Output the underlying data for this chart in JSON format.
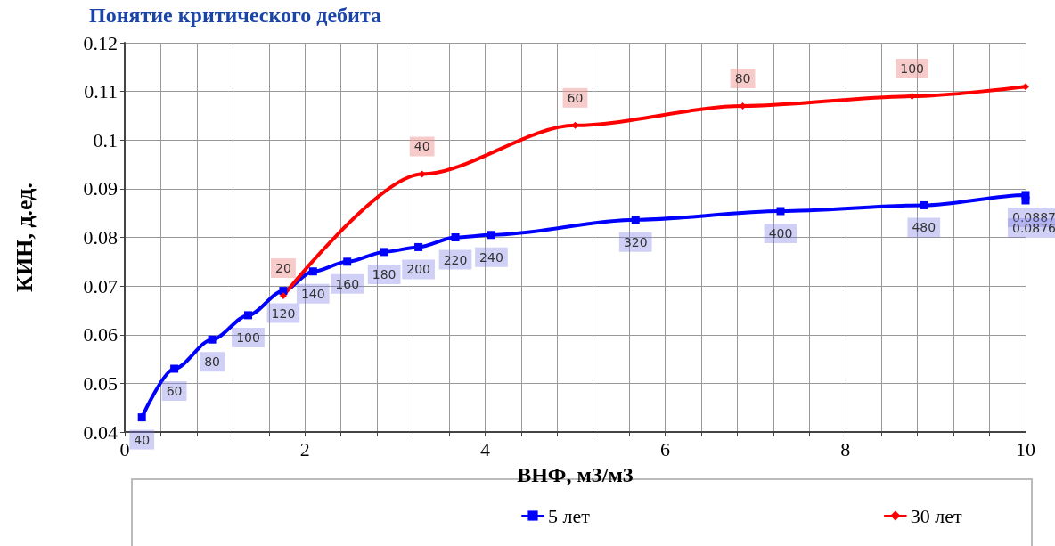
{
  "chart_data": {
    "type": "line",
    "title": "Понятие критического дебита",
    "xlabel": "ВНФ, м3/м3",
    "ylabel": "КИН, д.ед.",
    "xlim": [
      0,
      10
    ],
    "xticks": [
      0,
      {
        "value": 0.4,
        "label": null
      },
      {
        "value": 0.8,
        "label": null
      },
      {
        "value": 1.2,
        "label": null
      },
      {
        "value": 1.6,
        "label": null
      },
      2,
      {
        "value": 2.4,
        "label": null
      },
      {
        "value": 2.8,
        "label": null
      },
      {
        "value": 3.2,
        "label": null
      },
      {
        "value": 3.6,
        "label": null
      },
      4,
      {
        "value": 4.4,
        "label": null
      },
      {
        "value": 4.8,
        "label": null
      },
      {
        "value": 5.2,
        "label": null
      },
      {
        "value": 5.6,
        "label": null
      },
      6,
      {
        "value": 6.4,
        "label": null
      },
      {
        "value": 6.8,
        "label": null
      },
      {
        "value": 7.2,
        "label": null
      },
      {
        "value": 7.6,
        "label": null
      },
      8,
      {
        "value": 8.4,
        "label": null
      },
      {
        "value": 8.8,
        "label": null
      },
      {
        "value": 9.2,
        "label": null
      },
      {
        "value": 9.6,
        "label": null
      },
      10
    ],
    "ylim": [
      0.04,
      0.12
    ],
    "yticks": [
      0.04,
      0.05,
      0.06,
      0.07,
      0.08,
      0.09,
      0.1,
      0.11,
      0.12
    ],
    "grid": true,
    "legend": "bottom",
    "line_style": "solid",
    "series": [
      {
        "name": "5 лет",
        "color": "#0000ff",
        "marker": "square",
        "x": [
          0.19,
          0.55,
          0.97,
          1.37,
          1.76,
          2.09,
          2.47,
          2.88,
          3.26,
          3.67,
          4.07,
          5.67,
          7.28,
          8.87,
          10,
          10
        ],
        "values": [
          0.043,
          0.053,
          0.059,
          0.064,
          0.069,
          0.073,
          0.075,
          0.077,
          0.078,
          0.08,
          0.0805,
          0.0836,
          0.0854,
          0.0866,
          0.0887,
          0.0876
        ]
      },
      {
        "name": "30 лет",
        "color": "#ff0000",
        "marker": "diamond",
        "x": [
          1.76,
          3.3,
          5.0,
          6.86,
          8.74,
          10
        ],
        "values": [
          0.068,
          0.093,
          0.103,
          0.107,
          0.109,
          0.111
        ]
      }
    ],
    "annotations": [
      {
        "text": "40",
        "x": 0.19,
        "y": 0.043
      },
      {
        "text": "60",
        "x": 0.55,
        "y": 0.053
      },
      {
        "text": "80",
        "x": 0.97,
        "y": 0.059
      },
      {
        "text": "100",
        "x": 1.37,
        "y": 0.064
      },
      {
        "text": "120",
        "x": 1.76,
        "y": 0.069
      },
      {
        "text": "140",
        "x": 2.09,
        "y": 0.073
      },
      {
        "text": "160",
        "x": 2.47,
        "y": 0.075
      },
      {
        "text": "180",
        "x": 2.88,
        "y": 0.077
      },
      {
        "text": "200",
        "x": 3.26,
        "y": 0.078
      },
      {
        "text": "220",
        "x": 3.67,
        "y": 0.08
      },
      {
        "text": "240",
        "x": 4.07,
        "y": 0.0805
      },
      {
        "text": "320",
        "x": 5.67,
        "y": 0.0836
      },
      {
        "text": "400",
        "x": 7.28,
        "y": 0.0854
      },
      {
        "text": "480",
        "x": 8.87,
        "y": 0.0866
      },
      {
        "text": "0.0887",
        "x": 10,
        "y": 0.0887
      },
      {
        "text": "0.0876",
        "x": 10,
        "y": 0.0876
      },
      {
        "text": "20",
        "x": 1.76,
        "y": 0.068
      },
      {
        "text": "40",
        "x": 3.3,
        "y": 0.093
      },
      {
        "text": "60",
        "x": 5.0,
        "y": 0.103
      },
      {
        "text": "80",
        "x": 6.86,
        "y": 0.107
      },
      {
        "text": "100",
        "x": 8.74,
        "y": 0.109
      }
    ]
  }
}
